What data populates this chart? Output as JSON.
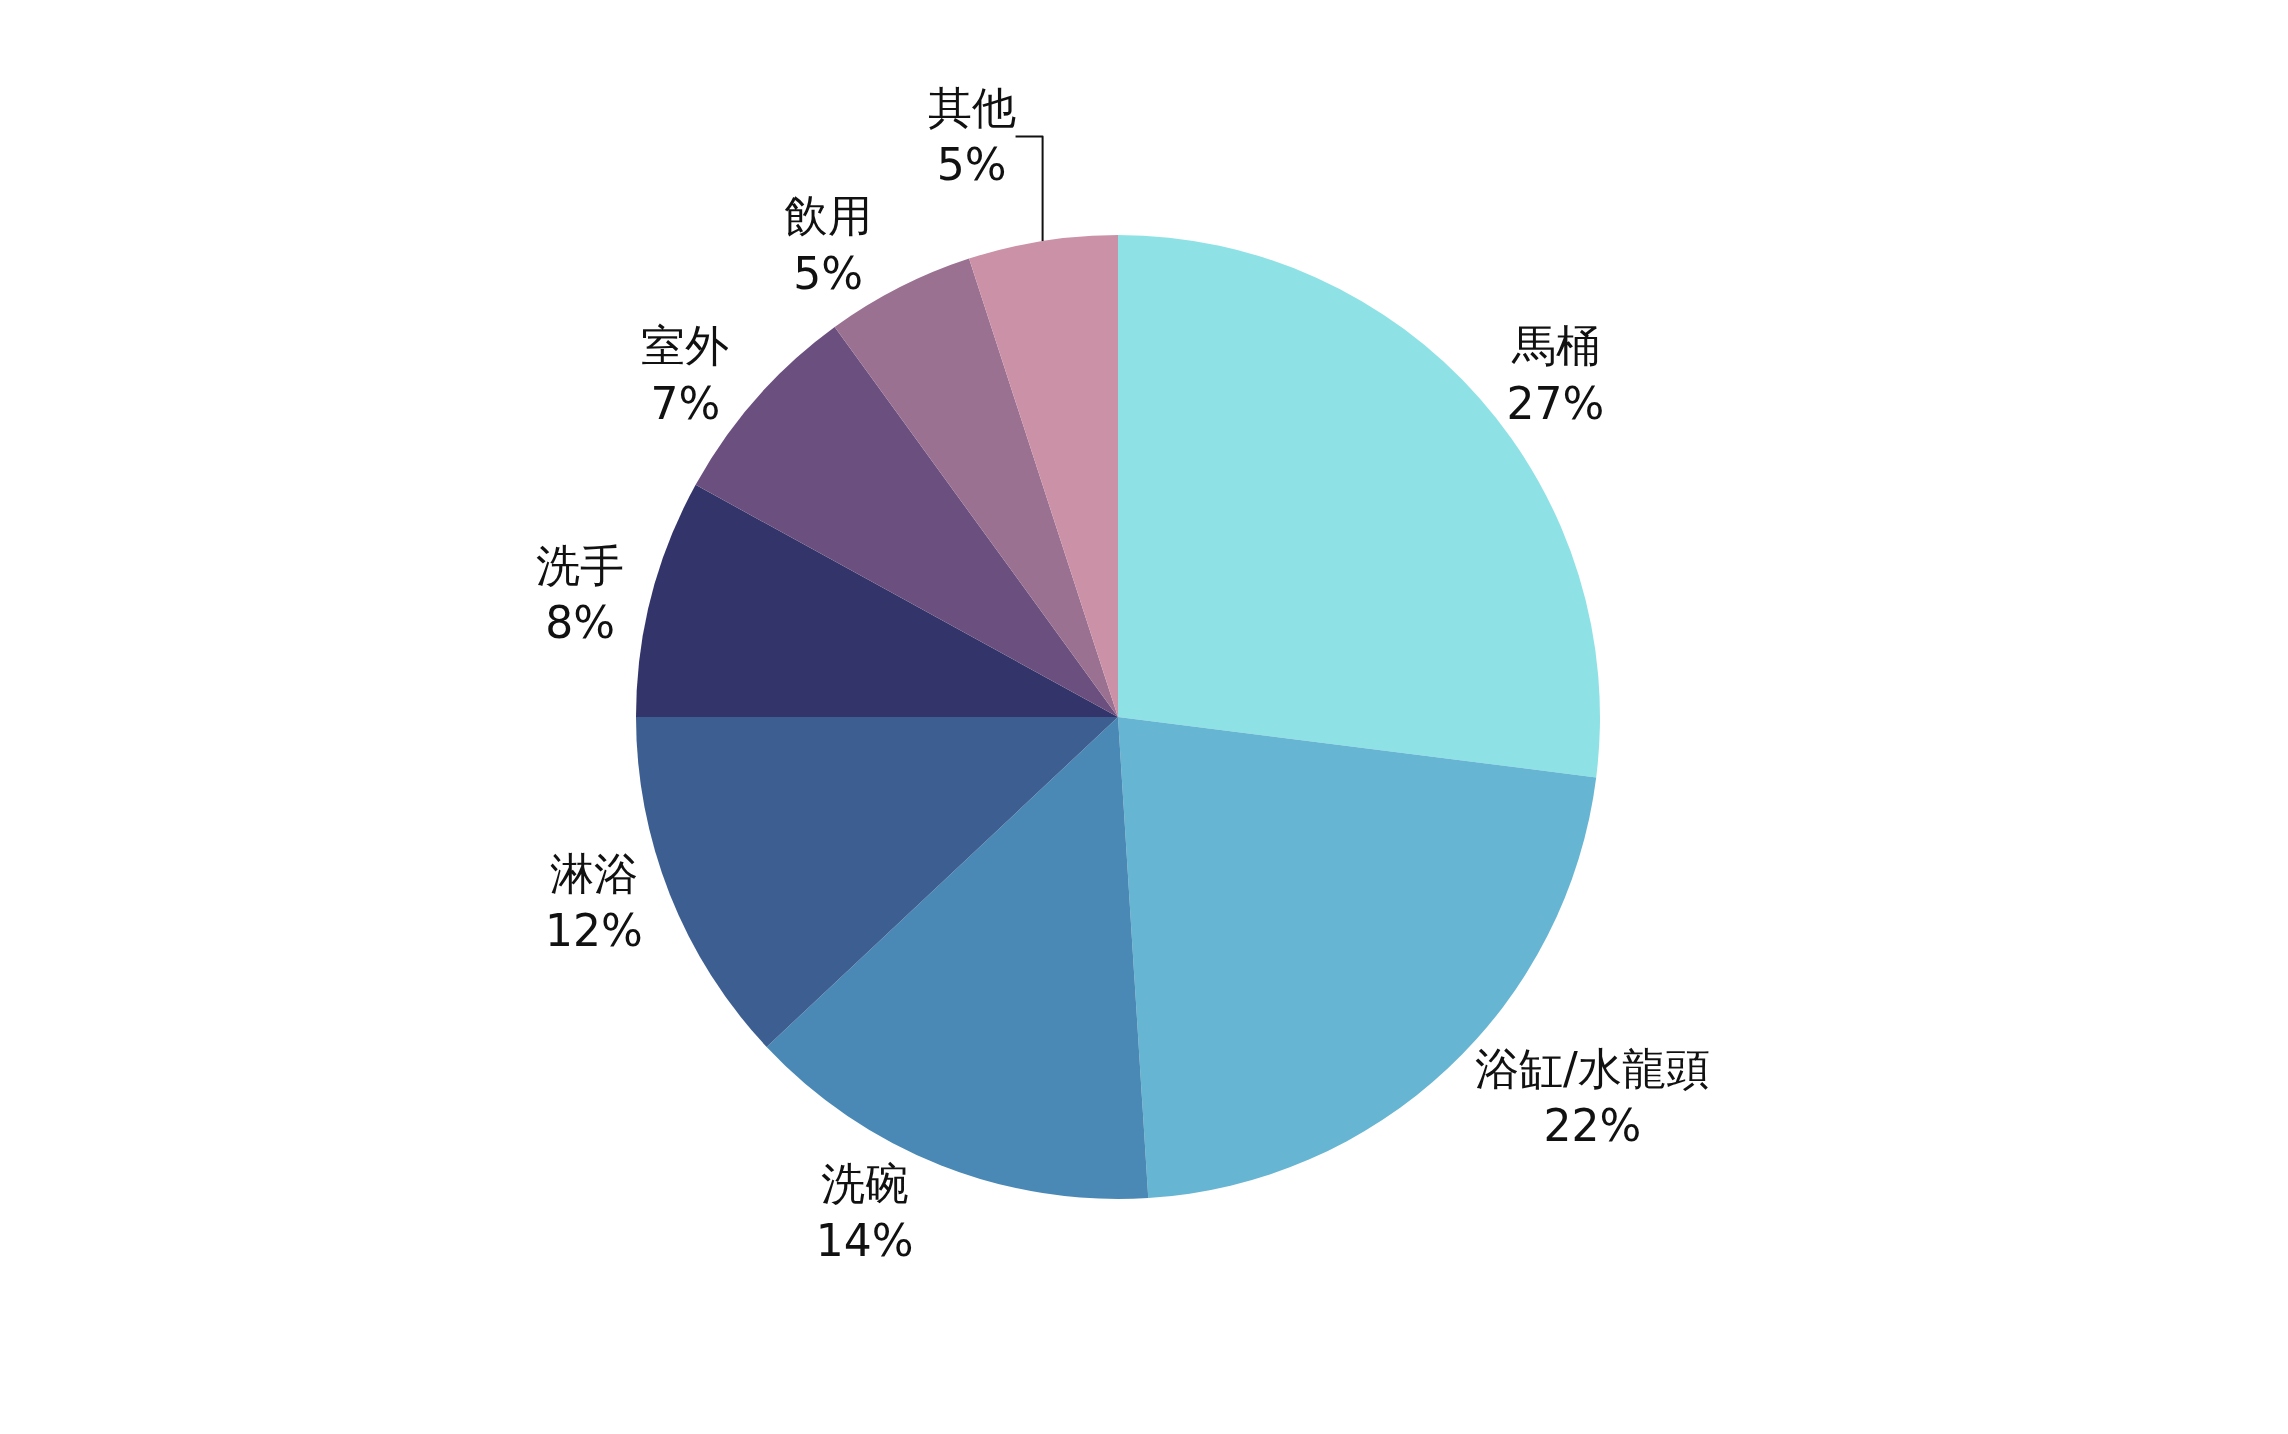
{
  "chart_data": {
    "type": "pie",
    "categories": [
      "馬桶",
      "浴缸/水龍頭",
      "洗碗",
      "淋浴",
      "洗手",
      "室外",
      "飲用",
      "其他"
    ],
    "values": [
      27,
      22,
      14,
      12,
      8,
      7,
      5,
      5
    ],
    "value_labels": [
      "27%",
      "22%",
      "14%",
      "12%",
      "8%",
      "7%",
      "5%",
      "5%"
    ],
    "colors": [
      "#8ee2e6",
      "#66b5d3",
      "#4a89b5",
      "#3d5e91",
      "#33356a",
      "#6b4f7f",
      "#9b7192",
      "#cb91a7"
    ],
    "legend": false
  }
}
